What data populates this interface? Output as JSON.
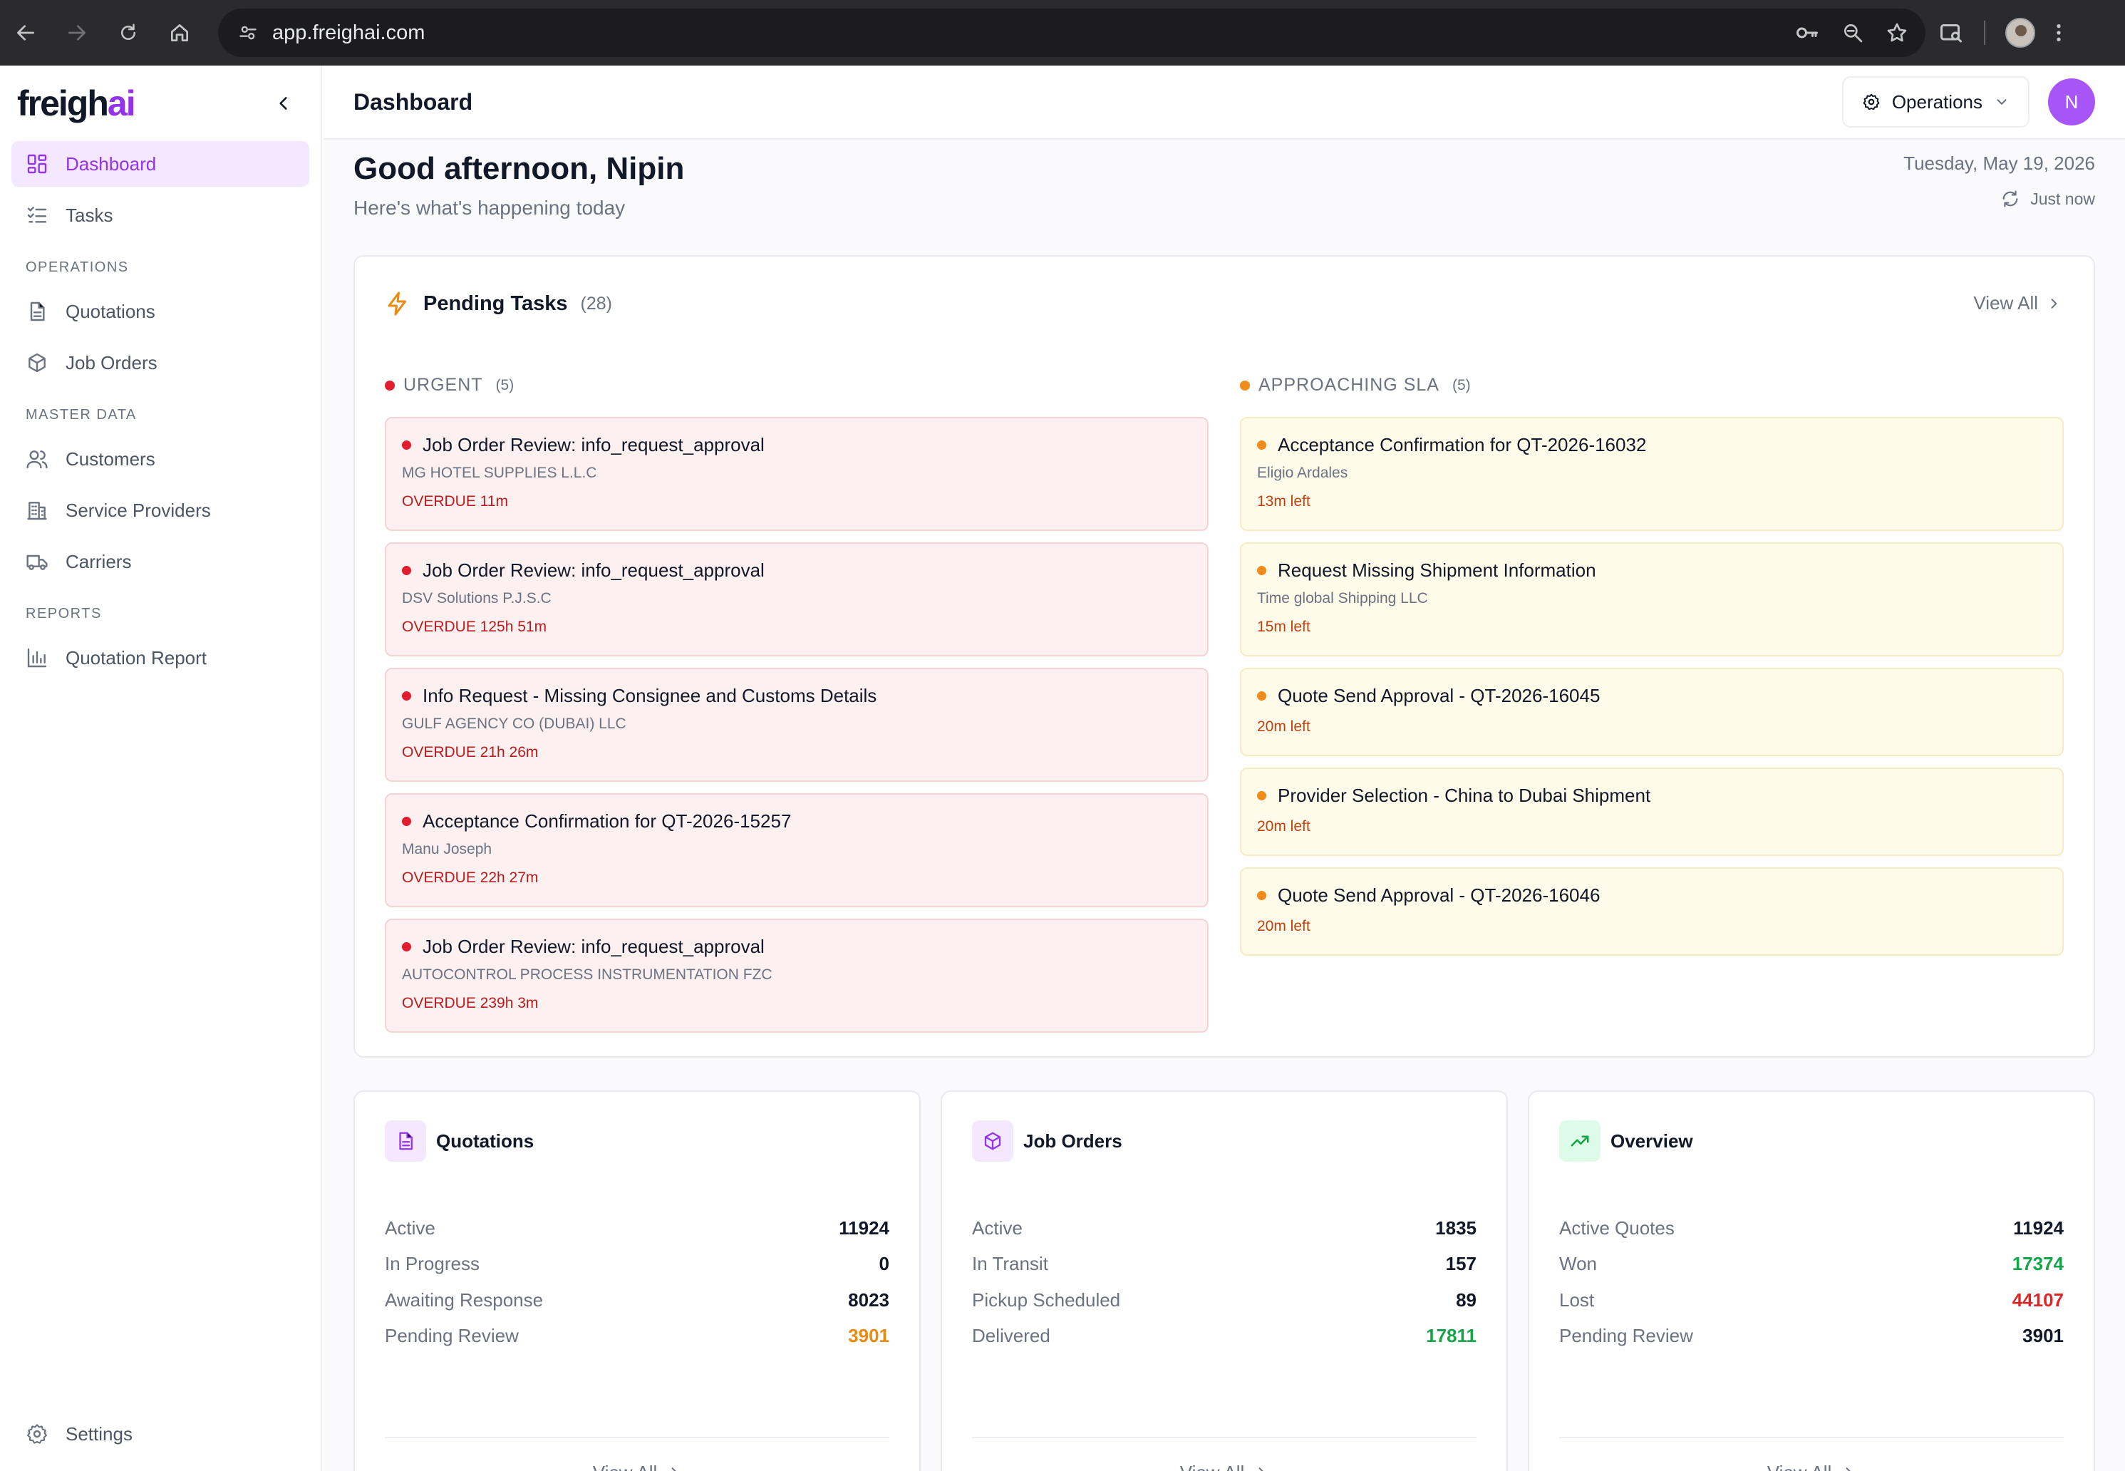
{
  "browser": {
    "url": "app.freighai.com",
    "icons": [
      "back-icon",
      "forward-icon",
      "reload-icon",
      "home-icon",
      "site-settings-icon",
      "key-icon",
      "zoom-icon",
      "star-icon",
      "tab-search-icon",
      "profile-avatar",
      "kebab-menu-icon"
    ]
  },
  "app": {
    "logo_main": "freigh",
    "logo_accent": "ai",
    "brand_color": "#9333ea"
  },
  "sidebar": {
    "top_items": [
      {
        "label": "Dashboard",
        "icon": "dashboard-icon",
        "active": true
      },
      {
        "label": "Tasks",
        "icon": "tasks-icon"
      }
    ],
    "sections": [
      {
        "title": "OPERATIONS",
        "items": [
          {
            "label": "Quotations",
            "icon": "document-icon"
          },
          {
            "label": "Job Orders",
            "icon": "package-icon"
          }
        ]
      },
      {
        "title": "MASTER DATA",
        "items": [
          {
            "label": "Customers",
            "icon": "users-icon"
          },
          {
            "label": "Service Providers",
            "icon": "building-icon"
          },
          {
            "label": "Carriers",
            "icon": "truck-icon"
          }
        ]
      },
      {
        "title": "REPORTS",
        "items": [
          {
            "label": "Quotation Report",
            "icon": "bar-chart-icon"
          }
        ]
      }
    ],
    "bottom_item": {
      "label": "Settings",
      "icon": "gear-icon"
    }
  },
  "header": {
    "title": "Dashboard",
    "role_label": "Operations",
    "user_initial": "N"
  },
  "greeting": {
    "title": "Good afternoon, Nipin",
    "subtitle": "Here's what's happening today",
    "date": "Tuesday, May 19, 2026",
    "refresh_label": "Just now"
  },
  "pending_tasks": {
    "title": "Pending Tasks",
    "count": "(28)",
    "view_all": "View All",
    "urgent": {
      "title": "URGENT",
      "count": "(5)",
      "color": "#e11d2e",
      "items": [
        {
          "title": "Job Order Review: info_request_approval",
          "company": "MG HOTEL SUPPLIES L.L.C",
          "status": "OVERDUE 11m"
        },
        {
          "title": "Job Order Review: info_request_approval",
          "company": "DSV Solutions P.J.S.C",
          "status": "OVERDUE 125h 51m"
        },
        {
          "title": "Info Request - Missing Consignee and Customs Details",
          "company": "GULF AGENCY CO (DUBAI) LLC",
          "status": "OVERDUE 21h 26m"
        },
        {
          "title": "Acceptance Confirmation for QT-2026-15257",
          "company": "Manu Joseph",
          "status": "OVERDUE 22h 27m"
        },
        {
          "title": "Job Order Review: info_request_approval",
          "company": "AUTOCONTROL PROCESS INSTRUMENTATION FZC",
          "status": "OVERDUE 239h 3m"
        }
      ]
    },
    "approaching": {
      "title": "APPROACHING SLA",
      "count": "(5)",
      "color": "#f08c1a",
      "items": [
        {
          "title": "Acceptance Confirmation for QT-2026-16032",
          "company": "Eligio Ardales",
          "status": "13m left"
        },
        {
          "title": "Request Missing Shipment Information",
          "company": "Time global Shipping LLC",
          "status": "15m left"
        },
        {
          "title": "Quote Send Approval - QT-2026-16045",
          "company": "",
          "status": "20m left"
        },
        {
          "title": "Provider Selection - China to Dubai Shipment",
          "company": "",
          "status": "20m left"
        },
        {
          "title": "Quote Send Approval - QT-2026-16046",
          "company": "",
          "status": "20m left"
        }
      ]
    }
  },
  "stats": [
    {
      "title": "Quotations",
      "icon": "document-icon",
      "badge_bg": "#f3e8ff",
      "icon_color": "#9333ea",
      "rows": [
        {
          "label": "Active",
          "value": "11924"
        },
        {
          "label": "In Progress",
          "value": "0"
        },
        {
          "label": "Awaiting Response",
          "value": "8023"
        },
        {
          "label": "Pending Review",
          "value": "3901",
          "tone": "orange"
        }
      ],
      "view_all": "View All"
    },
    {
      "title": "Job Orders",
      "icon": "package-icon",
      "badge_bg": "#f3e8ff",
      "icon_color": "#9333ea",
      "rows": [
        {
          "label": "Active",
          "value": "1835"
        },
        {
          "label": "In Transit",
          "value": "157"
        },
        {
          "label": "Pickup Scheduled",
          "value": "89"
        },
        {
          "label": "Delivered",
          "value": "17811",
          "tone": "green"
        }
      ],
      "view_all": "View All"
    },
    {
      "title": "Overview",
      "icon": "trending-up-icon",
      "badge_bg": "#dcfce7",
      "icon_color": "#16a34a",
      "rows": [
        {
          "label": "Active Quotes",
          "value": "11924"
        },
        {
          "label": "Won",
          "value": "17374",
          "tone": "green"
        },
        {
          "label": "Lost",
          "value": "44107",
          "tone": "red"
        },
        {
          "label": "Pending Review",
          "value": "3901"
        }
      ],
      "view_all": "View All"
    }
  ]
}
